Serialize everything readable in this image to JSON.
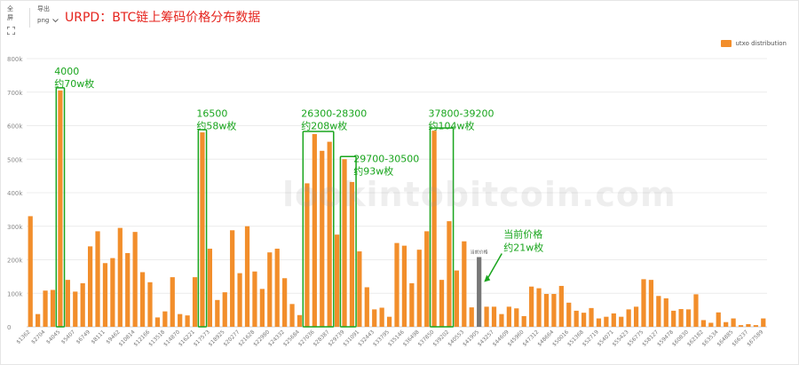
{
  "toolbar": {
    "fullscreen_label": "全屏",
    "export_label": "导出",
    "export_format": "png"
  },
  "title": "URPD：BTC链上筹码价格分布数据",
  "watermark": "lookintobitcoin.com",
  "chart_data": {
    "type": "bar",
    "title": "URPD：BTC链上筹码价格分布数据",
    "xlabel": "",
    "ylabel": "",
    "ylim": [
      0,
      800000
    ],
    "yticks": [
      "0",
      "100k",
      "200k",
      "300k",
      "400k",
      "500k",
      "600k",
      "700k",
      "800k"
    ],
    "grid": true,
    "legend_position": "top-right",
    "series": [
      {
        "name": "utxo distribution",
        "color": "#f28e2b",
        "values": [
          330000,
          38000,
          108000,
          110000,
          705000,
          140000,
          105000,
          130000,
          240000,
          285000,
          190000,
          205000,
          295000,
          220000,
          283000,
          163000,
          133000,
          28000,
          46000,
          148000,
          38000,
          34000,
          148000,
          580000,
          233000,
          80000,
          103000,
          288000,
          160000,
          300000,
          165000,
          113000,
          222000,
          233000,
          145000,
          68000,
          35000,
          428000,
          575000,
          525000,
          552000,
          275000,
          500000,
          432000,
          225000,
          118000,
          52000,
          57000,
          30000,
          250000,
          242000,
          130000,
          230000,
          285000,
          585000,
          140000,
          315000,
          168000,
          255000,
          58000,
          208000,
          60000,
          60000,
          38000,
          60000,
          55000,
          32000,
          120000,
          115000,
          98000,
          98000,
          122000,
          72000,
          48000,
          42000,
          56000,
          25000,
          30000,
          40000,
          30000,
          52000,
          60000,
          142000,
          140000,
          92000,
          85000,
          48000,
          53000,
          52000,
          97000,
          20000,
          12000,
          43000,
          14000,
          25000,
          5000,
          8000,
          5000,
          25000
        ]
      }
    ],
    "highlight": {
      "index": 60,
      "color": "#777777",
      "label": "当前价格"
    },
    "x_tick_labels": [
      "$1362",
      "$2704",
      "$4045",
      "$5407",
      "$6749",
      "$8111",
      "$9462",
      "$10814",
      "$12166",
      "$13518",
      "$14870",
      "$16221",
      "$17573",
      "$18925",
      "$20277",
      "$21628",
      "$22980",
      "$24332",
      "$25684",
      "$27036",
      "$28387",
      "$29739",
      "$31091",
      "$32443",
      "$33795",
      "$35146",
      "$36498",
      "$37850",
      "$39202",
      "$40553",
      "$41905",
      "$43257",
      "$44609",
      "$45960",
      "$47312",
      "$48664",
      "$50016",
      "$51368",
      "$52719",
      "$54071",
      "$55423",
      "$56775",
      "$58127",
      "$59478",
      "$60830",
      "$62182",
      "$63534",
      "$64885",
      "$66237",
      "$67589"
    ],
    "annotations": [
      {
        "label": "4000",
        "sublabel": "约70w枚",
        "start": 4,
        "end": 4,
        "label_at": 4,
        "label_y": 720000,
        "color": "#19a51d"
      },
      {
        "label": "16500",
        "sublabel": "约58w枚",
        "start": 23,
        "end": 23,
        "label_at": 23,
        "label_y": 595000,
        "color": "#19a51d"
      },
      {
        "label": "26300-28300",
        "sublabel": "约208w枚",
        "start": 37,
        "end": 40,
        "label_at": 37,
        "label_y": 595000,
        "color": "#19a51d"
      },
      {
        "label": "29700-30500",
        "sublabel": "约93w枚",
        "start": 42,
        "end": 43,
        "label_at": 44,
        "label_y": 460000,
        "color": "#19a51d"
      },
      {
        "label": "37800-39200",
        "sublabel": "约104w枚",
        "start": 54,
        "end": 56,
        "label_at": 54,
        "label_y": 595000,
        "color": "#19a51d"
      }
    ],
    "current_price_note": {
      "label": "当前价格",
      "sublabel": "约21w枚",
      "color": "#19a51d"
    }
  }
}
